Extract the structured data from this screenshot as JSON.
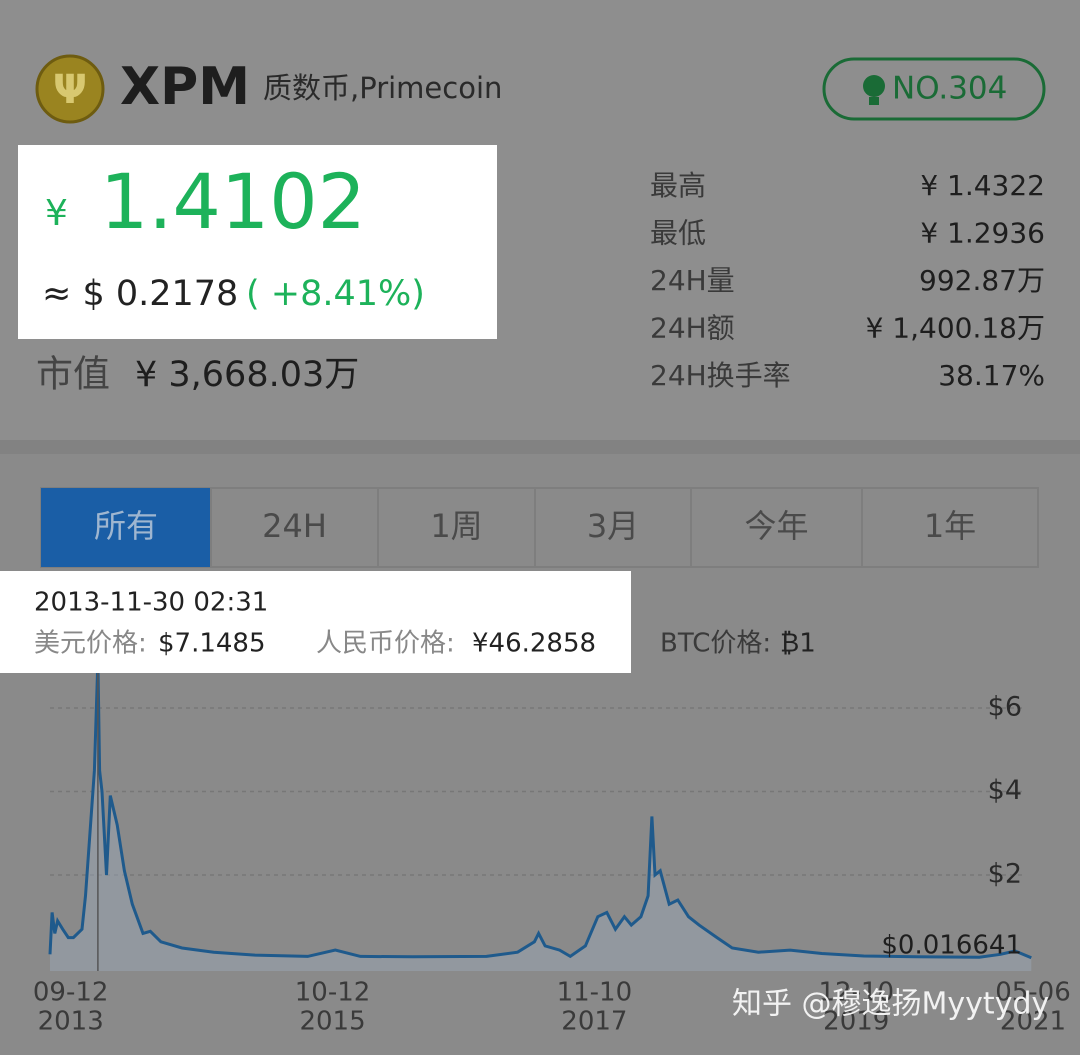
{
  "header": {
    "symbol": "XPM",
    "name": "质数币,Primecoin",
    "rank": "NO.304"
  },
  "price": {
    "currency": "¥",
    "value": "1.4102",
    "usd": "≈ $ 0.2178",
    "change": "( +8.41%)"
  },
  "market_cap": {
    "label": "市值",
    "value": "¥ 3,668.03万"
  },
  "stats": [
    [
      "最高",
      "¥ 1.4322"
    ],
    [
      "最低",
      "¥ 1.2936"
    ],
    [
      "24H量",
      "992.87万"
    ],
    [
      "24H额",
      "¥ 1,400.18万"
    ],
    [
      "24H换手率",
      "38.17%"
    ]
  ],
  "tabs": [
    "所有",
    "24H",
    "1周",
    "3月",
    "今年",
    "1年"
  ],
  "active_tab": 0,
  "tooltip": {
    "time": "2013-11-30 02:31",
    "usd_label": "美元价格:",
    "usd": "$7.1485",
    "cny_label": "人民币价格:",
    "cny": "¥46.2858",
    "btc_label": "BTC价格:",
    "btc": "₿1"
  },
  "watermark": "知乎 @穆逸扬Myytydy",
  "chart_data": {
    "type": "line",
    "color": "#1f5a8c",
    "x": [
      "2013-07-14",
      "2013-07-20",
      "2013-07-28",
      "2013-08-05",
      "2013-08-20",
      "2013-09-05",
      "2013-09-20",
      "2013-10-15",
      "2013-10-25",
      "2013-11-20",
      "2013-11-30",
      "2013-12-05",
      "2013-12-12",
      "2013-12-25",
      "2014-01-05",
      "2014-01-25",
      "2014-02-15",
      "2014-03-10",
      "2014-04-10",
      "2014-05-01",
      "2014-06-01",
      "2014-08-01",
      "2014-11-01",
      "2015-03-01",
      "2015-08-01",
      "2015-10-20",
      "2016-01-01",
      "2016-06-01",
      "2017-01-01",
      "2017-04-01",
      "2017-05-20",
      "2017-06-01",
      "2017-06-20",
      "2017-08-01",
      "2017-09-01",
      "2017-10-15",
      "2017-11-20",
      "2017-12-16",
      "2018-01-10",
      "2018-02-05",
      "2018-02-25",
      "2018-03-25",
      "2018-04-15",
      "2018-04-26",
      "2018-05-05",
      "2018-05-20",
      "2018-06-15",
      "2018-07-10",
      "2018-08-10",
      "2018-09-10",
      "2018-11-01",
      "2018-12-15",
      "2019-03-01",
      "2019-06-01",
      "2019-09-01",
      "2020-01-01",
      "2020-06-01",
      "2020-12-01",
      "2021-02-01",
      "2021-03-15",
      "2021-05-01"
    ],
    "values": [
      0.1,
      1.1,
      0.6,
      0.9,
      0.7,
      0.5,
      0.5,
      0.7,
      1.5,
      4.5,
      7.1485,
      4.5,
      4.0,
      2.0,
      3.9,
      3.2,
      2.1,
      1.3,
      0.6,
      0.65,
      0.4,
      0.25,
      0.15,
      0.08,
      0.05,
      0.2,
      0.05,
      0.04,
      0.05,
      0.15,
      0.4,
      0.6,
      0.3,
      0.2,
      0.05,
      0.3,
      1.0,
      1.1,
      0.7,
      1.0,
      0.8,
      1.0,
      1.5,
      3.4,
      2.0,
      2.1,
      1.3,
      1.4,
      1.0,
      0.8,
      0.5,
      0.25,
      0.15,
      0.2,
      0.12,
      0.06,
      0.04,
      0.03,
      0.1,
      0.18,
      0.016641
    ],
    "value_labels": [
      null,
      null,
      null,
      null,
      null,
      null,
      null,
      null,
      null,
      null,
      null,
      null,
      null,
      null,
      null,
      null,
      null,
      null,
      null,
      null,
      null,
      null,
      null,
      null,
      null,
      null,
      null,
      null,
      null,
      null,
      null,
      null,
      null,
      null,
      null,
      null,
      null,
      null,
      null,
      null,
      null,
      null,
      null,
      null,
      null,
      null,
      null,
      null,
      null,
      null,
      null,
      null,
      null,
      null,
      null,
      null,
      null,
      null,
      null,
      null,
      "$0.016641"
    ],
    "xlim": [
      "2013-07-14",
      "2021-05-06"
    ],
    "xticks": [
      {
        "value": "2013-09-12",
        "label": "09-12",
        "year": "2013"
      },
      {
        "value": "2015-10-12",
        "label": "10-12",
        "year": "2015"
      },
      {
        "value": "2017-11-10",
        "label": "11-10",
        "year": "2017"
      },
      {
        "value": "2019-12-10",
        "label": "12-10",
        "year": "2019"
      },
      {
        "value": "2021-05-06",
        "label": "05-06",
        "year": "2021"
      }
    ],
    "ylim": [
      -0.3,
      7.4
    ],
    "yticks": [
      {
        "value": 2,
        "label": "$2"
      },
      {
        "value": 4,
        "label": "$4"
      },
      {
        "value": 6,
        "label": "$6"
      }
    ],
    "grid": true
  }
}
